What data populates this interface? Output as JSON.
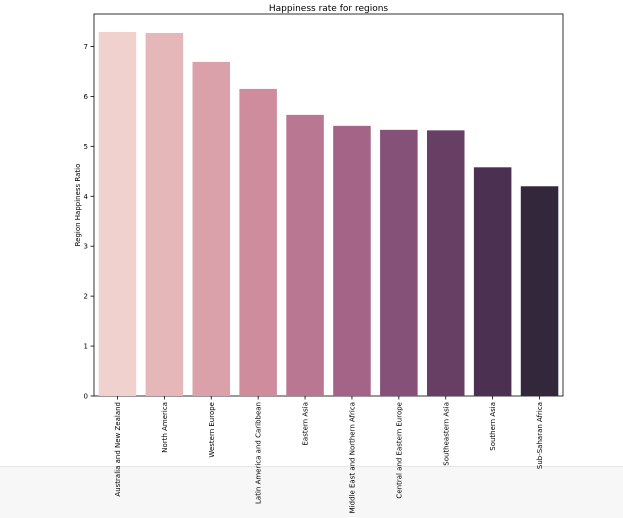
{
  "chart_data": {
    "type": "bar",
    "title": "Happiness rate for regions",
    "xlabel": "",
    "ylabel": "Region Happiness Ratio",
    "categories": [
      "Australia and New Zealand",
      "North America",
      "Western Europe",
      "Latin America and Caribbean",
      "Eastern Asia",
      "Middle East and Northern Africa",
      "Central and Eastern Europe",
      "Southeastern Asia",
      "Southern Asia",
      "Sub-Saharan Africa"
    ],
    "values": [
      7.29,
      7.27,
      6.69,
      6.15,
      5.63,
      5.41,
      5.33,
      5.32,
      4.58,
      4.2
    ],
    "ylim": [
      0,
      7.65
    ],
    "yticks": [
      0,
      1,
      2,
      3,
      4,
      5,
      6,
      7
    ],
    "grid": false,
    "legend": false,
    "colors": [
      "#f0d1ce",
      "#e6b7b9",
      "#dba1ab",
      "#ce8c9d",
      "#b97792",
      "#a46488",
      "#855178",
      "#673f65",
      "#4b3051",
      "#33273b"
    ]
  }
}
